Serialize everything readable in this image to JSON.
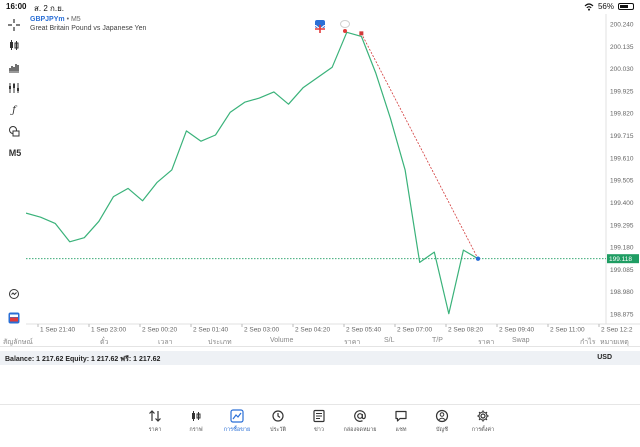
{
  "status_bar": {
    "time": "16:00",
    "date": "ส. 2 ก.ย.",
    "battery": "56%",
    "battery_level": 0.56
  },
  "chart": {
    "symbol": "GBPJPYm",
    "timeframe_suffix": "• M5",
    "description": "Great Britain Pound vs Japanese Yen",
    "left_tool_label": "M5",
    "price_labels": [
      "200.240",
      "200.135",
      "200.030",
      "199.925",
      "199.820",
      "199.715",
      "199.610",
      "199.505",
      "199.400",
      "199.295",
      "199.180",
      "199.085",
      "198.980",
      "198.875"
    ],
    "current_price": "199.118",
    "time_labels": [
      "1 Sep 21:40",
      "1 Sep 23:00",
      "2 Sep 00:20",
      "2 Sep 01:40",
      "2 Sep 03:00",
      "2 Sep 04:20",
      "2 Sep 05:40",
      "2 Sep 07:00",
      "2 Sep 08:20",
      "2 Sep 09:40",
      "2 Sep 11:00",
      "2 Sep 12:2"
    ],
    "colors": {
      "line": "#3ab27a",
      "bid_line": "#1f9d63",
      "trendline": "#d23a3a",
      "accent": "#2a6fd6"
    }
  },
  "chart_data": {
    "type": "line",
    "x": [
      "1 Sep 21:20",
      "1 Sep 21:40",
      "1 Sep 22:20",
      "1 Sep 23:00",
      "1 Sep 23:40",
      "2 Sep 00:00",
      "2 Sep 00:20",
      "2 Sep 00:40",
      "2 Sep 01:00",
      "2 Sep 01:20",
      "2 Sep 01:40",
      "2 Sep 02:00",
      "2 Sep 02:20",
      "2 Sep 02:40",
      "2 Sep 03:00",
      "2 Sep 03:20",
      "2 Sep 03:40",
      "2 Sep 04:00",
      "2 Sep 04:20",
      "2 Sep 04:40",
      "2 Sep 05:00",
      "2 Sep 05:20",
      "2 Sep 05:40",
      "2 Sep 06:00",
      "2 Sep 06:20",
      "2 Sep 06:40",
      "2 Sep 07:00",
      "2 Sep 07:20",
      "2 Sep 07:40",
      "2 Sep 08:00",
      "2 Sep 08:20",
      "2 Sep 08:40"
    ],
    "series": [
      {
        "values": [
          199.34,
          199.32,
          199.29,
          199.2,
          199.22,
          199.3,
          199.42,
          199.46,
          199.4,
          199.49,
          199.55,
          199.74,
          199.69,
          199.72,
          199.83,
          199.88,
          199.9,
          199.93,
          199.87,
          199.95,
          200.0,
          200.05,
          200.22,
          200.2,
          200.02,
          199.8,
          199.55,
          199.1,
          199.15,
          198.85,
          199.16,
          199.118
        ]
      }
    ],
    "ylim": [
      198.8,
      200.28
    ],
    "annotations": [
      {
        "type": "trendline",
        "from": 200.215,
        "to": 199.118
      }
    ]
  },
  "positions_header": [
    "สัญลักษณ์",
    "ตั๋ว",
    "เวลา",
    "ประเภท",
    "Volume",
    "ราคา",
    "S/L",
    "T/P",
    "ราคา",
    "Swap",
    "กำไร",
    "หมายเหตุ"
  ],
  "account": {
    "balance_text": "Balance: 1 217.62 Equity: 1 217.62 ฟรี: 1 217.62",
    "currency": "USD"
  },
  "tabs": [
    {
      "label": "ราคา",
      "icon": "arrows-updown-icon"
    },
    {
      "label": "กราฟ",
      "icon": "candles-icon"
    },
    {
      "label": "การซื้อขาย",
      "icon": "trade-chart-icon",
      "active": true
    },
    {
      "label": "ประวัติ",
      "icon": "history-icon"
    },
    {
      "label": "ข่าว",
      "icon": "news-icon"
    },
    {
      "label": "กล่องจดหมาย",
      "icon": "at-icon"
    },
    {
      "label": "แชท",
      "icon": "chat-icon"
    },
    {
      "label": "บัญชี",
      "icon": "account-icon"
    },
    {
      "label": "การตั้งค่า",
      "icon": "gear-icon"
    }
  ]
}
